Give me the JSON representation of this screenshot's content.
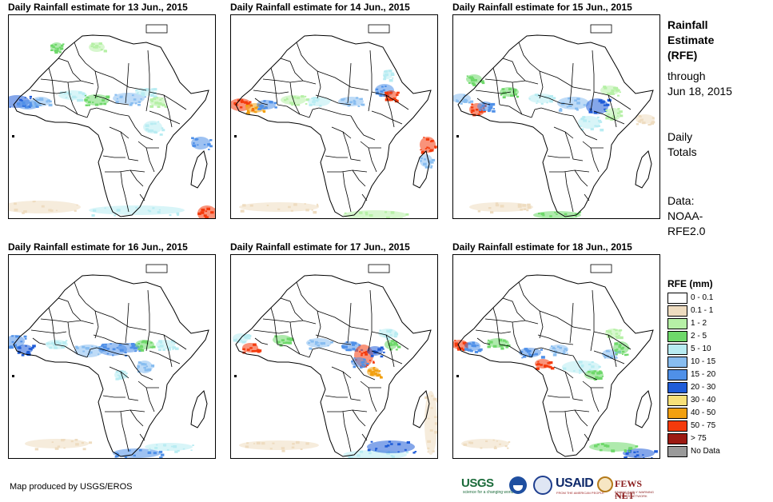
{
  "colors": {
    "r0": "#ffffff",
    "r1": "#eedcc0",
    "r2": "#b6f0a6",
    "r3": "#6ed86a",
    "r4": "#b8ecf2",
    "r5": "#88bdf0",
    "r6": "#4f90e8",
    "r7": "#1f5cd8",
    "r8": "#f8e078",
    "r9": "#f2a010",
    "r10": "#f43a0c",
    "r11": "#9c1a12",
    "nodata": "#9a9a9a"
  },
  "panels": [
    {
      "title": "Daily Rainfall estimate for 13 Jun., 2015"
    },
    {
      "title": "Daily Rainfall estimate for 14 Jun., 2015"
    },
    {
      "title": "Daily Rainfall estimate for 15 Jun., 2015"
    },
    {
      "title": "Daily Rainfall estimate for 16 Jun., 2015"
    },
    {
      "title": "Daily Rainfall estimate for 17 Jun., 2015"
    },
    {
      "title": "Daily Rainfall estimate for 18 Jun., 2015"
    }
  ],
  "sidebar": {
    "title_lines": [
      "Rainfall",
      "Estimate",
      "(RFE)"
    ],
    "through_lines": [
      "through",
      "Jun 18, 2015"
    ],
    "daily_lines": [
      "Daily",
      "Totals"
    ],
    "data_lines": [
      "Data:",
      "NOAA-",
      "RFE2.0"
    ]
  },
  "legend": {
    "title": "RFE (mm)",
    "items": [
      {
        "label": "0 - 0.1",
        "color": "#ffffff"
      },
      {
        "label": "0.1 - 1",
        "color": "#eedcc0"
      },
      {
        "label": "1 - 2",
        "color": "#b6f0a6"
      },
      {
        "label": "2 - 5",
        "color": "#6ed86a"
      },
      {
        "label": "5 - 10",
        "color": "#b8ecf2"
      },
      {
        "label": "10 - 15",
        "color": "#88bdf0"
      },
      {
        "label": "15 - 20",
        "color": "#4f90e8"
      },
      {
        "label": "20 - 30",
        "color": "#1f5cd8"
      },
      {
        "label": "30 - 40",
        "color": "#f8e078"
      },
      {
        "label": "40 - 50",
        "color": "#f2a010"
      },
      {
        "label": "50 - 75",
        "color": "#f43a0c"
      },
      {
        "label": "> 75",
        "color": "#9c1a12"
      },
      {
        "label": "No Data",
        "color": "#9a9a9a"
      }
    ]
  },
  "credit": "Map produced by USGS/EROS",
  "logos": {
    "usgs": "USGS",
    "usgs_tagline": "science for a changing world",
    "usaid": "USAID",
    "usaid_tagline": "FROM THE AMERICAN PEOPLE",
    "fews": "FEWS NET",
    "fews_tagline": "FAMINE EARLY WARNING SYSTEMS NETWORK"
  }
}
